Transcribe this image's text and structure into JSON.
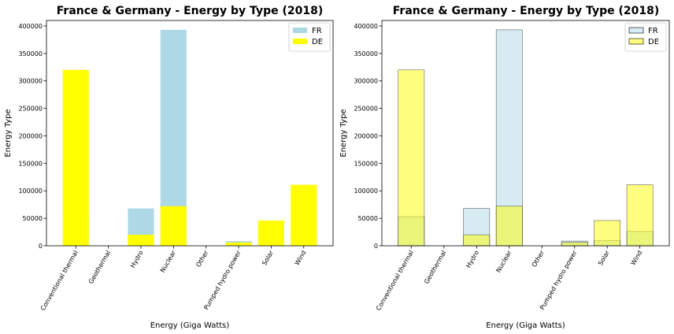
{
  "chart_data": [
    {
      "type": "bar",
      "title": "France & Germany - Energy by Type (2018)",
      "xlabel": "Energy (Giga Watts)",
      "ylabel": "Energy Type",
      "ylim": [
        0,
        410000
      ],
      "yticks": [
        0,
        50000,
        100000,
        150000,
        200000,
        250000,
        300000,
        350000,
        400000
      ],
      "yticklabels": [
        "0",
        "50000",
        "100000",
        "150000",
        "200000",
        "250000",
        "300000",
        "350000",
        "400000"
      ],
      "categories": [
        "Conventional thermal",
        "Geothermal",
        "Hydro",
        "Nuclear",
        "Other",
        "Pumped hydro power",
        "Solar",
        "Wind"
      ],
      "series": [
        {
          "name": "FR",
          "values": [
            53000,
            0,
            68000,
            393000,
            0,
            8500,
            9000,
            26000
          ],
          "color": "#add8e6",
          "alpha": 1.0
        },
        {
          "name": "DE",
          "values": [
            320000,
            0,
            20000,
            72000,
            0,
            6000,
            46000,
            111000
          ],
          "color": "#ffff00",
          "alpha": 1.0
        }
      ],
      "legend": "top-right",
      "grid": false
    },
    {
      "type": "bar",
      "title": "France & Germany - Energy by Type (2018)",
      "xlabel": "Energy (Giga Watts)",
      "ylabel": "Energy Type",
      "ylim": [
        0,
        410000
      ],
      "yticks": [
        0,
        50000,
        100000,
        150000,
        200000,
        250000,
        300000,
        350000,
        400000
      ],
      "yticklabels": [
        "0",
        "50000",
        "100000",
        "150000",
        "200000",
        "250000",
        "300000",
        "350000",
        "400000"
      ],
      "categories": [
        "Conventional thermal",
        "Geothermal",
        "Hydro",
        "Nuclear",
        "Other",
        "Pumped hydro power",
        "Solar",
        "Wind"
      ],
      "series": [
        {
          "name": "FR",
          "values": [
            53000,
            0,
            68000,
            393000,
            0,
            8500,
            9000,
            26000
          ],
          "color": "#add8e6",
          "alpha": 0.5,
          "edgecolor": "#000000"
        },
        {
          "name": "DE",
          "values": [
            320000,
            0,
            20000,
            72000,
            0,
            6000,
            46000,
            111000
          ],
          "color": "#ffff00",
          "alpha": 0.5,
          "edgecolor": "#000000"
        }
      ],
      "legend": "top-right",
      "grid": false
    }
  ]
}
